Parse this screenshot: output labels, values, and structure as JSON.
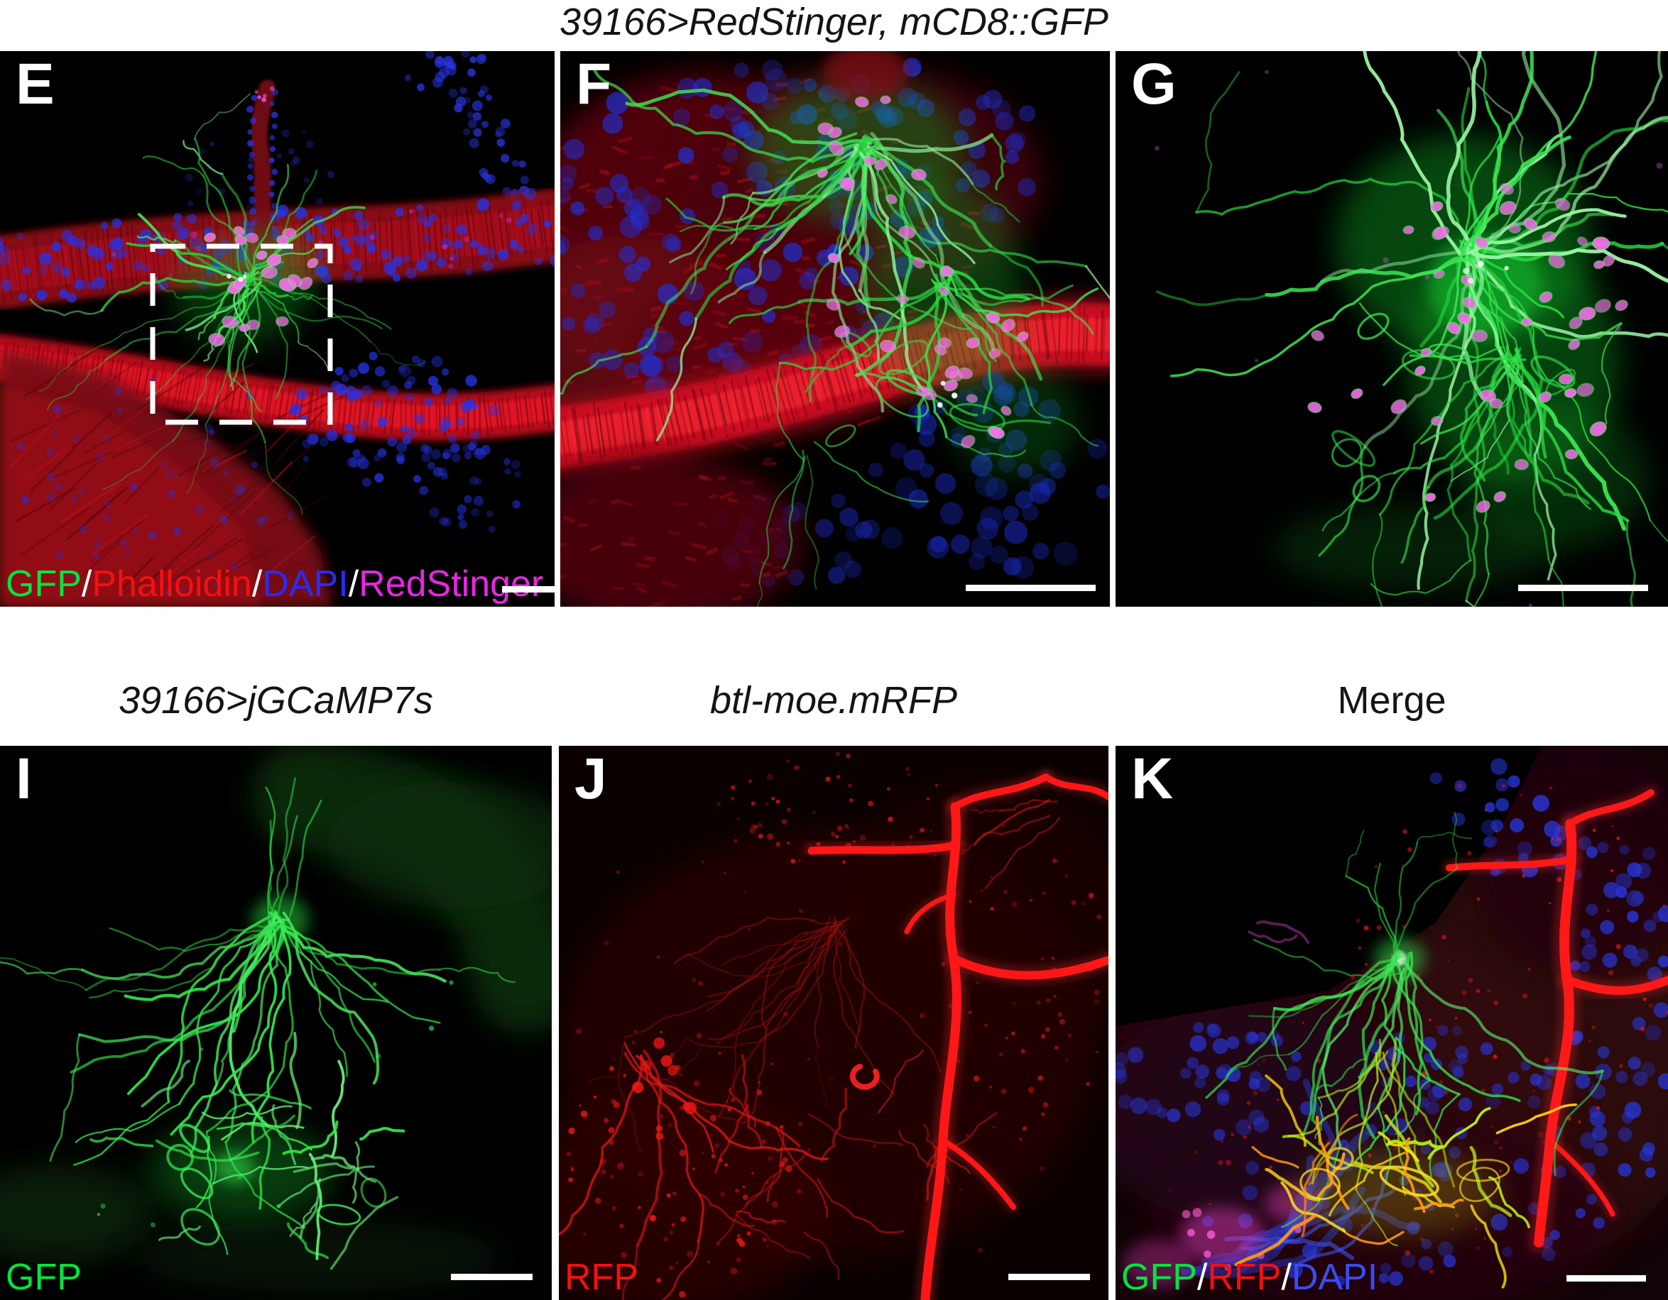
{
  "figure": {
    "top_title": "39166>RedStinger, mCD8::GFP",
    "row2_titles": [
      {
        "panel": "I",
        "label": "39166>jGCaMP7s"
      },
      {
        "panel": "J",
        "label": "btl-moe.mRFP"
      },
      {
        "panel": "K",
        "label": "Merge"
      }
    ],
    "panels": [
      {
        "letter": "E",
        "has_scale_bar": true,
        "has_roi_box": true,
        "channel_labels": [
          {
            "text": "GFP",
            "color": "#00e63e"
          },
          {
            "text": "/",
            "color": "#ffffff"
          },
          {
            "text": "Phalloidin",
            "color": "#f21111"
          },
          {
            "text": "/",
            "color": "#ffffff"
          },
          {
            "text": "DAPI",
            "color": "#2a2cf2"
          },
          {
            "text": "/",
            "color": "#ffffff"
          },
          {
            "text": "RedStinger",
            "color": "#ea25e4"
          }
        ]
      },
      {
        "letter": "F",
        "has_scale_bar": true,
        "channel_labels": []
      },
      {
        "letter": "G",
        "has_scale_bar": true,
        "channel_labels": []
      },
      {
        "letter": "I",
        "has_scale_bar": true,
        "channel_labels": [
          {
            "text": "GFP",
            "color": "#00e63e"
          }
        ]
      },
      {
        "letter": "J",
        "has_scale_bar": true,
        "channel_labels": [
          {
            "text": "RFP",
            "color": "#f21111"
          }
        ]
      },
      {
        "letter": "K",
        "has_scale_bar": true,
        "channel_labels": [
          {
            "text": "GFP",
            "color": "#00e63e"
          },
          {
            "text": "/",
            "color": "#ffffff"
          },
          {
            "text": "RFP",
            "color": "#f21111"
          },
          {
            "text": "/",
            "color": "#ffffff"
          },
          {
            "text": "DAPI",
            "color": "#3a4cf0"
          }
        ]
      }
    ]
  }
}
